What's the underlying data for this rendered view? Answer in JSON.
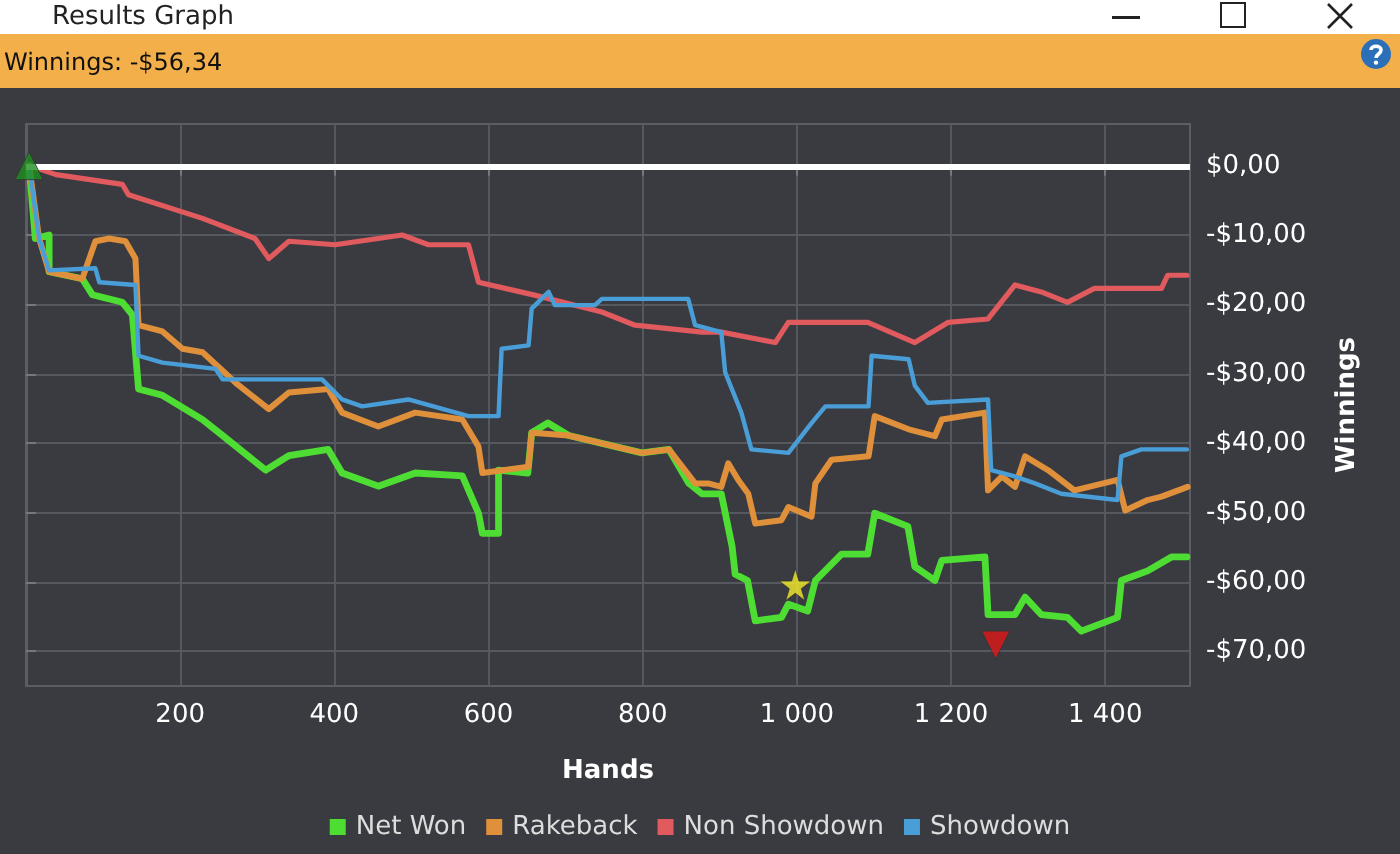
{
  "chart_data": {
    "type": "line",
    "title": "Results Graph",
    "subtitle": "Winnings: -$56,34",
    "xlabel": "Hands",
    "ylabel": "Winnings",
    "xlim": [
      0,
      1510
    ],
    "ylim": [
      -75,
      6
    ],
    "xticks": [
      200,
      400,
      600,
      800,
      {
        "value": 1000,
        "label": "1 000"
      },
      {
        "value": 1200,
        "label": "1 200"
      },
      {
        "value": 1400,
        "label": "1 400"
      }
    ],
    "yticks": [
      {
        "value": 0,
        "label": "$0,00"
      },
      {
        "value": -10,
        "label": "-$10,00"
      },
      {
        "value": -20,
        "label": "-$20,00"
      },
      {
        "value": -30,
        "label": "-$30,00"
      },
      {
        "value": -40,
        "label": "-$40,00"
      },
      {
        "value": -50,
        "label": "-$50,00"
      },
      {
        "value": -60,
        "label": "-$60,00"
      },
      {
        "value": -70,
        "label": "-$70,00"
      }
    ],
    "grid": true,
    "legend": "bottom",
    "marker": "none",
    "line_style": "solid",
    "ref_lines": [
      {
        "axis": "y",
        "value": 0,
        "label": null,
        "color": "#ffffff"
      }
    ],
    "series": [
      {
        "name": "Net Won",
        "color": "#4ddd33",
        "x": [
          4,
          12,
          30,
          30,
          73,
          86,
          125,
          138,
          146,
          177,
          229,
          255,
          311,
          341,
          392,
          410,
          457,
          505,
          566,
          587,
          592,
          613,
          613,
          651,
          656,
          677,
          704,
          799,
          834,
          860,
          877,
          902,
          916,
          920,
          936,
          946,
          980,
          989,
          1014,
          1024,
          1058,
          1092,
          1101,
          1144,
          1153,
          1179,
          1188,
          1244,
          1248,
          1283,
          1296,
          1317,
          1351,
          1369,
          1416,
          1421,
          1455,
          1486,
          1506
        ],
        "values": [
          0,
          -10.5,
          -10,
          -15.3,
          -16.3,
          -18.6,
          -19.7,
          -21.5,
          -32.2,
          -33.1,
          -36.6,
          -38.9,
          -43.9,
          -41.8,
          -40.9,
          -44.3,
          -46.2,
          -44.3,
          -44.7,
          -50.1,
          -53,
          -53,
          -43.9,
          -44.3,
          -38.5,
          -37.1,
          -38.9,
          -41.4,
          -40.9,
          -45.8,
          -47.3,
          -47.3,
          -54.9,
          -58.9,
          -59.8,
          -65.6,
          -65.1,
          -63.2,
          -64.2,
          -59.8,
          -56,
          -56,
          -50.1,
          -52,
          -57.8,
          -59.8,
          -56.9,
          -56.4,
          -64.7,
          -64.7,
          -62.2,
          -64.7,
          -65.1,
          -67.1,
          -65.1,
          -59.8,
          -58.4,
          -56.4,
          -56.4
        ]
      },
      {
        "name": "Rakeback",
        "color": "#e0903a",
        "x": [
          4,
          17,
          30,
          73,
          90,
          108,
          129,
          142,
          146,
          177,
          203,
          229,
          272,
          315,
          341,
          392,
          410,
          457,
          505,
          566,
          587,
          592,
          652,
          656,
          704,
          799,
          834,
          868,
          885,
          902,
          911,
          924,
          937,
          946,
          980,
          989,
          1019,
          1024,
          1045,
          1093,
          1101,
          1145,
          1179,
          1188,
          1244,
          1248,
          1266,
          1283,
          1296,
          1326,
          1360,
          1416,
          1426,
          1455,
          1473,
          1507
        ],
        "values": [
          0,
          -10.5,
          -15.3,
          -16.3,
          -10.9,
          -10.5,
          -10.9,
          -13.4,
          -23,
          -23.9,
          -26.4,
          -26.9,
          -31.3,
          -35.1,
          -32.7,
          -32.2,
          -35.6,
          -37.6,
          -35.6,
          -36.6,
          -40.5,
          -44.3,
          -43.4,
          -38.5,
          -38.9,
          -41.4,
          -40.9,
          -45.8,
          -45.8,
          -46.3,
          -42.9,
          -45.3,
          -47.3,
          -51.6,
          -51.1,
          -49.2,
          -50.6,
          -45.8,
          -42.4,
          -41.9,
          -36.1,
          -38,
          -39,
          -36.6,
          -35.6,
          -46.8,
          -44.8,
          -46.3,
          -41.9,
          -43.9,
          -46.8,
          -45.3,
          -49.7,
          -48.2,
          -47.7,
          -46.3
        ]
      },
      {
        "name": "Non Showdown",
        "color": "#e05a5e",
        "x": [
          4,
          39,
          125,
          133,
          229,
          297,
          315,
          341,
          401,
          488,
          522,
          574,
          587,
          661,
          747,
          790,
          877,
          902,
          972,
          989,
          1092,
          1153,
          1196,
          1248,
          1283,
          1317,
          1351,
          1386,
          1473,
          1481,
          1506
        ],
        "values": [
          0,
          -1.3,
          -2.7,
          -4.2,
          -7.6,
          -10.5,
          -13.4,
          -10.9,
          -11.4,
          -10,
          -11.4,
          -11.4,
          -16.8,
          -18.7,
          -21.1,
          -23,
          -24,
          -24,
          -25.5,
          -22.6,
          -22.6,
          -25.5,
          -22.6,
          -22.1,
          -17.2,
          -18.2,
          -19.7,
          -17.7,
          -17.7,
          -15.8,
          -15.8
        ]
      },
      {
        "name": "Showdown",
        "color": "#4a9ed8",
        "x": [
          4,
          17,
          30,
          90,
          95,
          142,
          146,
          177,
          246,
          255,
          384,
          410,
          436,
          496,
          574,
          613,
          617,
          652,
          656,
          678,
          686,
          738,
          747,
          859,
          868,
          902,
          907,
          928,
          941,
          989,
          1019,
          1037,
          1093,
          1097,
          1145,
          1153,
          1170,
          1248,
          1252,
          1283,
          1309,
          1343,
          1416,
          1421,
          1447,
          1506
        ],
        "values": [
          0,
          -10.5,
          -15.1,
          -14.8,
          -16.8,
          -17.2,
          -27.4,
          -28.4,
          -29.3,
          -30.8,
          -30.8,
          -33.7,
          -34.7,
          -33.7,
          -36.1,
          -36.1,
          -26.4,
          -25.9,
          -20.6,
          -18.2,
          -20.1,
          -20.1,
          -19.2,
          -19.2,
          -23,
          -24,
          -29.8,
          -35.6,
          -40.9,
          -41.4,
          -37.1,
          -34.7,
          -34.7,
          -27.4,
          -27.9,
          -31.7,
          -34.2,
          -33.7,
          -43.9,
          -44.8,
          -45.8,
          -47.3,
          -48.2,
          -41.9,
          -40.9,
          -40.9
        ]
      },
      {
        "type": "scatter",
        "marker": "triangle",
        "color": "#1e8f1e",
        "x": [
          4
        ],
        "values": [
          0
        ]
      },
      {
        "type": "scatter",
        "marker": "star",
        "color": "#f5ee2a",
        "x": [
          998
        ],
        "values": [
          -60.4
        ]
      },
      {
        "type": "scatter",
        "marker": "triangle-down",
        "color": "#e01818",
        "x": [
          1258
        ],
        "values": [
          -69.1
        ]
      }
    ]
  }
}
